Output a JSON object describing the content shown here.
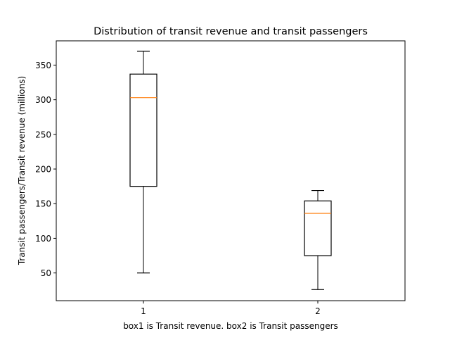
{
  "chart_data": {
    "type": "box",
    "title": "Distribution of transit revenue and transit passengers",
    "xlabel": "box1 is Transit revenue. box2 is Transit passengers",
    "ylabel": "Transit passengers/Transit revenue (millions)",
    "ylim": [
      10,
      385
    ],
    "xlim": [
      0.5,
      2.5
    ],
    "yticks": [
      50,
      100,
      150,
      200,
      250,
      300,
      350
    ],
    "categories": [
      "1",
      "2"
    ],
    "boxes": [
      {
        "category": "1",
        "whisker_low": 50,
        "q1": 175,
        "median": 303,
        "q3": 337,
        "whisker_high": 370
      },
      {
        "category": "2",
        "whisker_low": 26,
        "q1": 75,
        "median": 136,
        "q3": 154,
        "whisker_high": 169
      }
    ],
    "colors": {
      "box_edge": "#000000",
      "median": "#ff7f0e"
    },
    "grid": false,
    "legend": "none"
  }
}
